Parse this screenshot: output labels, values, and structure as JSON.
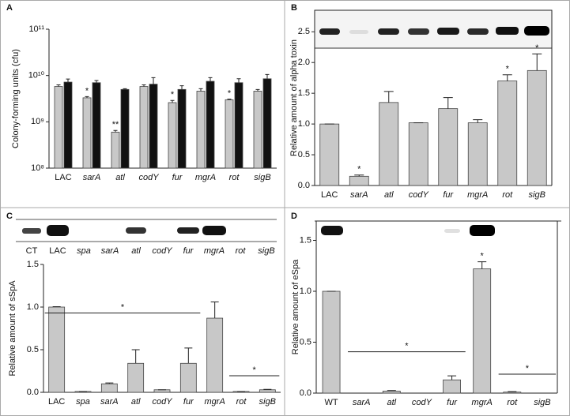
{
  "chart_data": [
    {
      "type": "bar",
      "panel": "A",
      "y_label": "Colony-forming units (cfu)",
      "log_scale": true,
      "categories": [
        "LAC",
        "sarA",
        "atl",
        "codY",
        "fur",
        "mgrA",
        "rot",
        "sigB"
      ],
      "series": [
        {
          "color": "#c8c8c8",
          "values": [
            5800000000,
            3300000000,
            600000000,
            5800000000,
            2600000000,
            4600000000,
            3000000000,
            4600000000
          ],
          "errors": [
            500000000,
            200000000,
            50000000,
            500000000,
            300000000,
            600000000,
            100000000,
            400000000
          ],
          "significance": [
            null,
            "*",
            "**",
            null,
            "*",
            null,
            "*",
            null
          ]
        },
        {
          "color": "#111111",
          "values": [
            7200000000,
            7000000000,
            5000000000,
            6500000000,
            5000000000,
            7500000000,
            7000000000,
            8500000000
          ],
          "errors": [
            1200000000,
            800000000,
            200000000,
            2500000000,
            1000000000,
            1500000000,
            1500000000,
            2000000000
          ]
        }
      ],
      "ylim": [
        100000000,
        100000000000
      ],
      "yticks": [
        {
          "value": 100000000,
          "label": "10⁸"
        },
        {
          "value": 1000000000,
          "label": "10⁹"
        },
        {
          "value": 10000000000,
          "label": "10¹⁰"
        },
        {
          "value": 100000000000,
          "label": "10¹¹"
        }
      ]
    },
    {
      "type": "bar",
      "panel": "B",
      "y_label": "Relative amount of alpha toxin",
      "color": "#c8c8c8",
      "categories": [
        "LAC",
        "sarA",
        "atl",
        "codY",
        "fur",
        "mgrA",
        "rot",
        "sigB"
      ],
      "values": [
        1.0,
        0.15,
        1.35,
        1.02,
        1.25,
        1.02,
        1.7,
        1.87
      ],
      "errors": [
        0,
        0.02,
        0.18,
        0,
        0.18,
        0.05,
        0.1,
        0.27
      ],
      "significance": [
        null,
        "*",
        null,
        null,
        null,
        null,
        "*",
        "*"
      ],
      "ylim": [
        0,
        2.85
      ],
      "yticks": [
        {
          "value": 0,
          "label": "0.0"
        },
        {
          "value": 0.5,
          "label": "0.5"
        },
        {
          "value": 1,
          "label": "1.0"
        },
        {
          "value": 1.5,
          "label": "1.5"
        },
        {
          "value": 2,
          "label": "2.0"
        },
        {
          "value": 2.5,
          "label": "2.5"
        }
      ]
    },
    {
      "type": "bar",
      "panel": "C",
      "y_label": "Relative amount of sSpA",
      "color": "#c8c8c8",
      "blot_labels": [
        "CT",
        "LAC",
        "spa",
        "sarA",
        "atl",
        "codY",
        "fur",
        "mgrA",
        "rot",
        "sigB"
      ],
      "categories": [
        "LAC",
        "spa",
        "sarA",
        "atl",
        "codY",
        "fur",
        "mgrA",
        "rot",
        "sigB"
      ],
      "values": [
        1.0,
        0.01,
        0.1,
        0.34,
        0.03,
        0.34,
        0.87,
        0.01,
        0.03
      ],
      "errors": [
        0.005,
        0,
        0.01,
        0.16,
        0,
        0.18,
        0.19,
        0,
        0.005
      ],
      "annotations": [
        "*",
        "*"
      ],
      "ylim": [
        0,
        1.5
      ],
      "yticks": [
        {
          "value": 0,
          "label": "0.0"
        },
        {
          "value": 0.5,
          "label": "0.5"
        },
        {
          "value": 1,
          "label": "1.0"
        },
        {
          "value": 1.5,
          "label": "1.5"
        }
      ]
    },
    {
      "type": "bar",
      "panel": "D",
      "y_label": "Relative amount of eSpa",
      "color": "#c8c8c8",
      "categories": [
        "WT",
        "sarA",
        "atl",
        "codY",
        "fur",
        "mgrA",
        "rot",
        "sigB"
      ],
      "values": [
        1.0,
        0,
        0.02,
        0,
        0.13,
        1.22,
        0.01,
        0
      ],
      "errors": [
        0,
        0,
        0.005,
        0,
        0.04,
        0.07,
        0.005,
        0
      ],
      "significance": [
        null,
        null,
        null,
        null,
        null,
        "*",
        null,
        null
      ],
      "annotations": [
        "*",
        "*"
      ],
      "ylim": [
        0,
        1.69
      ],
      "yticks": [
        {
          "value": 0,
          "label": "0.0"
        },
        {
          "value": 0.5,
          "label": "0.5"
        },
        {
          "value": 1,
          "label": "1.0"
        },
        {
          "value": 1.5,
          "label": "1.5"
        }
      ]
    }
  ]
}
